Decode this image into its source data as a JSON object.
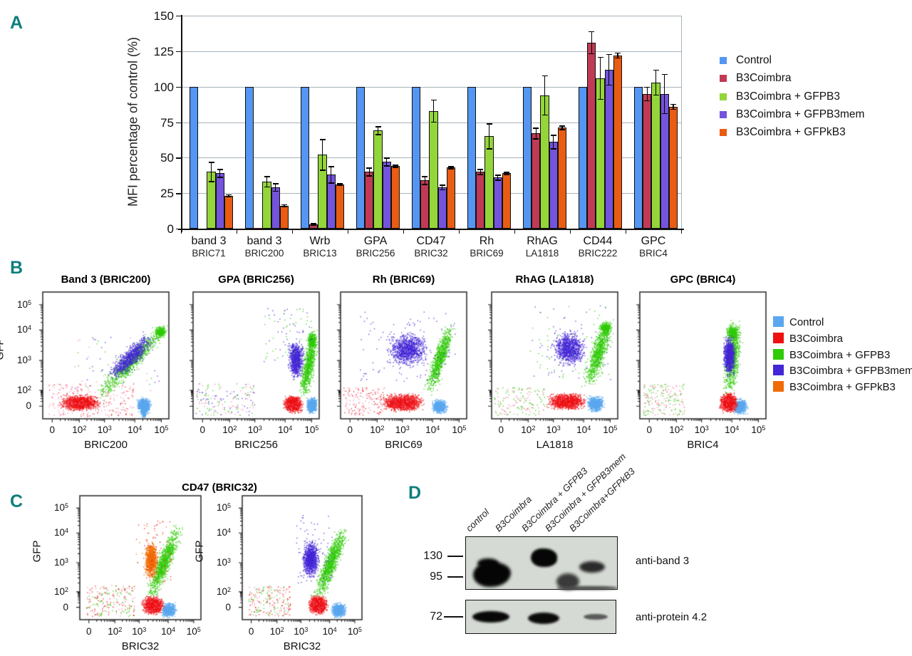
{
  "panel_letters": [
    "A",
    "B",
    "C",
    "D"
  ],
  "accent_color": "#0e7f7c",
  "chart_data": [
    {
      "id": "panel-A",
      "type": "bar",
      "title": "",
      "xlabel": "",
      "ylabel": "MFI percentage of control (%)",
      "ylim": [
        0,
        150
      ],
      "yticks": [
        0,
        25,
        50,
        75,
        100,
        125,
        150
      ],
      "grid": "horizontal",
      "legend_position": "right",
      "categories": [
        {
          "label": "band 3",
          "sub": "BRIC71"
        },
        {
          "label": "band 3",
          "sub": "BRIC200"
        },
        {
          "label": "Wrb",
          "sub": "BRIC13"
        },
        {
          "label": "GPA",
          "sub": "BRIC256"
        },
        {
          "label": "CD47",
          "sub": "BRIC32"
        },
        {
          "label": "Rh",
          "sub": "BRIC69"
        },
        {
          "label": "RhAG",
          "sub": "LA1818"
        },
        {
          "label": "CD44",
          "sub": "BRIC222"
        },
        {
          "label": "GPC",
          "sub": "BRIC4"
        }
      ],
      "series": [
        {
          "name": "Control",
          "color": "#5496f2",
          "values": [
            100,
            100,
            100,
            100,
            100,
            100,
            100,
            100,
            100
          ],
          "errors": [
            0,
            0,
            0,
            0,
            0,
            0,
            0,
            0,
            0
          ]
        },
        {
          "name": "B3Coimbra",
          "color": "#c13a55",
          "values": [
            0,
            0.5,
            3,
            40,
            34,
            40,
            67,
            131,
            95
          ],
          "errors": [
            0,
            0.4,
            0.8,
            3,
            3,
            2,
            4,
            8,
            5
          ]
        },
        {
          "name": "B3Coimbra + GFPB3",
          "color": "#94d53a",
          "values": [
            40,
            33,
            52,
            69,
            83,
            65,
            94,
            106,
            103
          ],
          "errors": [
            7,
            4,
            11,
            3,
            8,
            9,
            14,
            15,
            9
          ]
        },
        {
          "name": "B3Coimbra + GFPB3mem",
          "color": "#7454dc",
          "values": [
            39,
            29,
            38,
            47,
            29,
            36,
            61,
            112,
            95
          ],
          "errors": [
            3,
            3,
            6,
            3,
            2,
            2,
            5,
            11,
            14
          ]
        },
        {
          "name": "B3Coimbra + GFPkB3",
          "color": "#e95c11",
          "values": [
            23,
            16,
            31,
            44,
            43,
            39,
            71,
            122,
            86
          ],
          "errors": [
            1,
            1,
            1,
            1,
            1,
            1,
            1.5,
            2,
            2
          ]
        }
      ]
    },
    {
      "id": "panel-B",
      "type": "scatter",
      "xticks": [
        "0",
        "10²",
        "10³",
        "10⁴",
        "10⁵"
      ],
      "yticks": [
        "0",
        "10²",
        "10³",
        "10⁴",
        "10⁵"
      ],
      "ylabel": "GFP",
      "legend": [
        {
          "name": "Control",
          "key": "blue"
        },
        {
          "name": "B3Coimbra",
          "key": "red"
        },
        {
          "name": "B3Coimbra + GFPB3",
          "key": "green"
        },
        {
          "name": "B3Coimbra + GFPB3mem",
          "key": "purple"
        },
        {
          "name": "B3Coimbra + GFPkB3",
          "key": "orange"
        }
      ],
      "flow_colors": {
        "blue": "#5aa7ef",
        "red": "#ee1111",
        "pink": "#f47fa8",
        "green": "#2fcb08",
        "purple": "#4326d6",
        "orange": "#f06c06"
      },
      "plots": [
        {
          "title": "Band 3 (BRIC200)",
          "xlabel": "BRIC200",
          "clusters": [
            {
              "t": "s",
              "r": [
                0.03,
                0.02,
                0.72,
                0.28
              ],
              "n": 260,
              "ks": [
                "red",
                "pink",
                "pink"
              ]
            },
            {
              "t": "s",
              "r": [
                0.25,
                0.22,
                0.92,
                0.65
              ],
              "n": 70,
              "ks": [
                "green",
                "pink",
                "purple"
              ]
            },
            {
              "t": "b",
              "c": [
                0.8,
                0.11
              ],
              "s": [
                0.045,
                0.05
              ],
              "n": 900,
              "k": "blue"
            },
            {
              "t": "b",
              "c": [
                0.8,
                0.05
              ],
              "s": [
                0.02,
                0.035
              ],
              "n": 160,
              "k": "blue"
            },
            {
              "t": "d",
              "a": [
                0.44,
                0.18
              ],
              "b": [
                0.96,
                0.72
              ],
              "w": 0.05,
              "n": 1000,
              "k": "green"
            },
            {
              "t": "b",
              "c": [
                0.93,
                0.69
              ],
              "s": [
                0.035,
                0.035
              ],
              "n": 350,
              "k": "green"
            },
            {
              "t": "b",
              "c": [
                0.29,
                0.13
              ],
              "s": [
                0.13,
                0.05
              ],
              "n": 1500,
              "k": "red"
            },
            {
              "t": "d",
              "a": [
                0.54,
                0.34
              ],
              "b": [
                0.86,
                0.65
              ],
              "w": 0.05,
              "n": 900,
              "k": "purple"
            }
          ]
        },
        {
          "title": "GPA (BRIC256)",
          "xlabel": "BRIC256",
          "clusters": [
            {
              "t": "s",
              "r": [
                0.02,
                0.03,
                0.5,
                0.28
              ],
              "n": 170,
              "ks": [
                "pink",
                "green",
                "purple"
              ]
            },
            {
              "t": "b",
              "c": [
                0.94,
                0.11
              ],
              "s": [
                0.035,
                0.05
              ],
              "n": 800,
              "k": "blue"
            },
            {
              "t": "d",
              "a": [
                0.87,
                0.17
              ],
              "b": [
                0.96,
                0.7
              ],
              "w": 0.04,
              "n": 900,
              "k": "green"
            },
            {
              "t": "b",
              "c": [
                0.94,
                0.62
              ],
              "s": [
                0.03,
                0.06
              ],
              "n": 300,
              "k": "green"
            },
            {
              "t": "b",
              "c": [
                0.79,
                0.12
              ],
              "s": [
                0.06,
                0.055
              ],
              "n": 1400,
              "k": "red"
            },
            {
              "t": "b",
              "c": [
                0.81,
                0.47
              ],
              "s": [
                0.05,
                0.12
              ],
              "n": 900,
              "k": "purple"
            },
            {
              "t": "s",
              "r": [
                0.55,
                0.45,
                0.95,
                0.88
              ],
              "n": 90,
              "ks": [
                "purple",
                "green"
              ]
            }
          ]
        },
        {
          "title": "Rh (BRIC69)",
          "xlabel": "BRIC69",
          "clusters": [
            {
              "t": "s",
              "r": [
                0.02,
                0.03,
                0.35,
                0.25
              ],
              "n": 160,
              "ks": [
                "pink",
                "red"
              ]
            },
            {
              "t": "b",
              "c": [
                0.78,
                0.1
              ],
              "s": [
                0.05,
                0.045
              ],
              "n": 800,
              "k": "blue"
            },
            {
              "t": "d",
              "a": [
                0.7,
                0.22
              ],
              "b": [
                0.87,
                0.75
              ],
              "w": 0.045,
              "n": 950,
              "k": "green"
            },
            {
              "t": "b",
              "c": [
                0.49,
                0.13
              ],
              "s": [
                0.13,
                0.055
              ],
              "n": 1700,
              "k": "red"
            },
            {
              "t": "b",
              "c": [
                0.53,
                0.55
              ],
              "s": [
                0.13,
                0.11
              ],
              "n": 1100,
              "k": "purple"
            },
            {
              "t": "s",
              "r": [
                0.15,
                0.3,
                0.92,
                0.85
              ],
              "n": 120,
              "ks": [
                "purple"
              ]
            }
          ]
        },
        {
          "title": "RhAG (LA1818)",
          "xlabel": "LA1818",
          "clusters": [
            {
              "t": "s",
              "r": [
                0.02,
                0.03,
                0.42,
                0.25
              ],
              "n": 160,
              "ks": [
                "pink",
                "green"
              ]
            },
            {
              "t": "b",
              "c": [
                0.82,
                0.12
              ],
              "s": [
                0.055,
                0.05
              ],
              "n": 900,
              "k": "blue"
            },
            {
              "t": "d",
              "a": [
                0.76,
                0.28
              ],
              "b": [
                0.93,
                0.77
              ],
              "w": 0.05,
              "n": 950,
              "k": "green"
            },
            {
              "t": "b",
              "c": [
                0.9,
                0.72
              ],
              "s": [
                0.04,
                0.04
              ],
              "n": 300,
              "k": "green"
            },
            {
              "t": "b",
              "c": [
                0.59,
                0.14
              ],
              "s": [
                0.12,
                0.055
              ],
              "n": 1600,
              "k": "red"
            },
            {
              "t": "b",
              "c": [
                0.61,
                0.56
              ],
              "s": [
                0.11,
                0.11
              ],
              "n": 1050,
              "k": "purple"
            },
            {
              "t": "s",
              "r": [
                0.3,
                0.3,
                0.95,
                0.9
              ],
              "n": 100,
              "ks": [
                "purple",
                "green"
              ]
            }
          ]
        },
        {
          "title": "GPC (BRIC4)",
          "xlabel": "BRIC4",
          "clusters": [
            {
              "t": "s",
              "r": [
                0.02,
                0.03,
                0.35,
                0.28
              ],
              "n": 200,
              "ks": [
                "pink",
                "green"
              ]
            },
            {
              "t": "b",
              "c": [
                0.79,
                0.1
              ],
              "s": [
                0.05,
                0.05
              ],
              "n": 750,
              "k": "blue"
            },
            {
              "t": "d",
              "a": [
                0.7,
                0.2
              ],
              "b": [
                0.76,
                0.76
              ],
              "w": 0.05,
              "n": 950,
              "k": "green"
            },
            {
              "t": "b",
              "c": [
                0.73,
                0.68
              ],
              "s": [
                0.045,
                0.05
              ],
              "n": 350,
              "k": "green"
            },
            {
              "t": "b",
              "c": [
                0.7,
                0.13
              ],
              "s": [
                0.055,
                0.06
              ],
              "n": 1400,
              "k": "red"
            },
            {
              "t": "b",
              "c": [
                0.705,
                0.5
              ],
              "s": [
                0.04,
                0.13
              ],
              "n": 950,
              "k": "purple"
            }
          ]
        }
      ]
    },
    {
      "id": "panel-C",
      "type": "scatter",
      "title": "CD47 (BRIC32)",
      "xticks": [
        "0",
        "10²",
        "10³",
        "10⁴",
        "10⁵"
      ],
      "yticks": [
        "0",
        "10²",
        "10³",
        "10⁴",
        "10⁵"
      ],
      "ylabel": "GFP",
      "plots": [
        {
          "xlabel": "BRIC32",
          "clusters": [
            {
              "t": "s",
              "r": [
                0.05,
                0.03,
                0.45,
                0.28
              ],
              "n": 220,
              "ks": [
                "pink",
                "red",
                "green"
              ]
            },
            {
              "t": "b",
              "c": [
                0.73,
                0.08
              ],
              "s": [
                0.05,
                0.05
              ],
              "n": 800,
              "k": "blue"
            },
            {
              "t": "d",
              "a": [
                0.57,
                0.17
              ],
              "b": [
                0.81,
                0.75
              ],
              "w": 0.05,
              "n": 1100,
              "k": "green"
            },
            {
              "t": "b",
              "c": [
                0.6,
                0.12
              ],
              "s": [
                0.07,
                0.06
              ],
              "n": 1300,
              "k": "red"
            },
            {
              "t": "b",
              "c": [
                0.585,
                0.48
              ],
              "s": [
                0.045,
                0.12
              ],
              "n": 1000,
              "k": "orange"
            },
            {
              "t": "s",
              "r": [
                0.45,
                0.3,
                0.75,
                0.8
              ],
              "n": 80,
              "ks": [
                "red",
                "orange"
              ]
            }
          ]
        },
        {
          "xlabel": "BRIC32",
          "clusters": [
            {
              "t": "s",
              "r": [
                0.05,
                0.03,
                0.4,
                0.28
              ],
              "n": 220,
              "ks": [
                "pink",
                "red",
                "green"
              ]
            },
            {
              "t": "b",
              "c": [
                0.8,
                0.08
              ],
              "s": [
                0.05,
                0.05
              ],
              "n": 800,
              "k": "blue"
            },
            {
              "t": "d",
              "a": [
                0.62,
                0.17
              ],
              "b": [
                0.85,
                0.74
              ],
              "w": 0.05,
              "n": 1100,
              "k": "green"
            },
            {
              "t": "b",
              "c": [
                0.63,
                0.12
              ],
              "s": [
                0.065,
                0.06
              ],
              "n": 1300,
              "k": "red"
            },
            {
              "t": "b",
              "c": [
                0.57,
                0.49
              ],
              "s": [
                0.055,
                0.12
              ],
              "n": 1100,
              "k": "purple"
            },
            {
              "t": "s",
              "r": [
                0.45,
                0.3,
                0.75,
                0.85
              ],
              "n": 80,
              "ks": [
                "purple"
              ]
            }
          ]
        }
      ]
    },
    {
      "id": "panel-D",
      "type": "western-blot",
      "lanes": [
        "control",
        "B3Coimbra",
        "B3Coimbra + GFPB3",
        "B3Coimbra + GFPB3mem",
        "B3Coimbra+GFPkB3"
      ],
      "markers": [
        "130",
        "95",
        "72"
      ],
      "blots": [
        {
          "antibody": "anti-band 3",
          "bands": [
            {
              "lane": "control",
              "mw": "~95-100",
              "intensity": "strong"
            },
            {
              "lane": "B3Coimbra + GFPB3",
              "mw": "~130",
              "intensity": "strong"
            },
            {
              "lane": "B3Coimbra + GFPB3mem",
              "mw": "~85",
              "intensity": "weak-diffuse"
            },
            {
              "lane": "B3Coimbra+GFPkB3",
              "mw": "~110",
              "intensity": "medium"
            }
          ]
        },
        {
          "antibody": "anti-protein 4.2",
          "bands": [
            {
              "lane": "control",
              "mw": "72",
              "intensity": "strong"
            },
            {
              "lane": "B3Coimbra + GFPB3",
              "mw": "72",
              "intensity": "strong"
            },
            {
              "lane": "B3Coimbra+GFPkB3",
              "mw": "72",
              "intensity": "faint"
            }
          ]
        }
      ]
    }
  ]
}
